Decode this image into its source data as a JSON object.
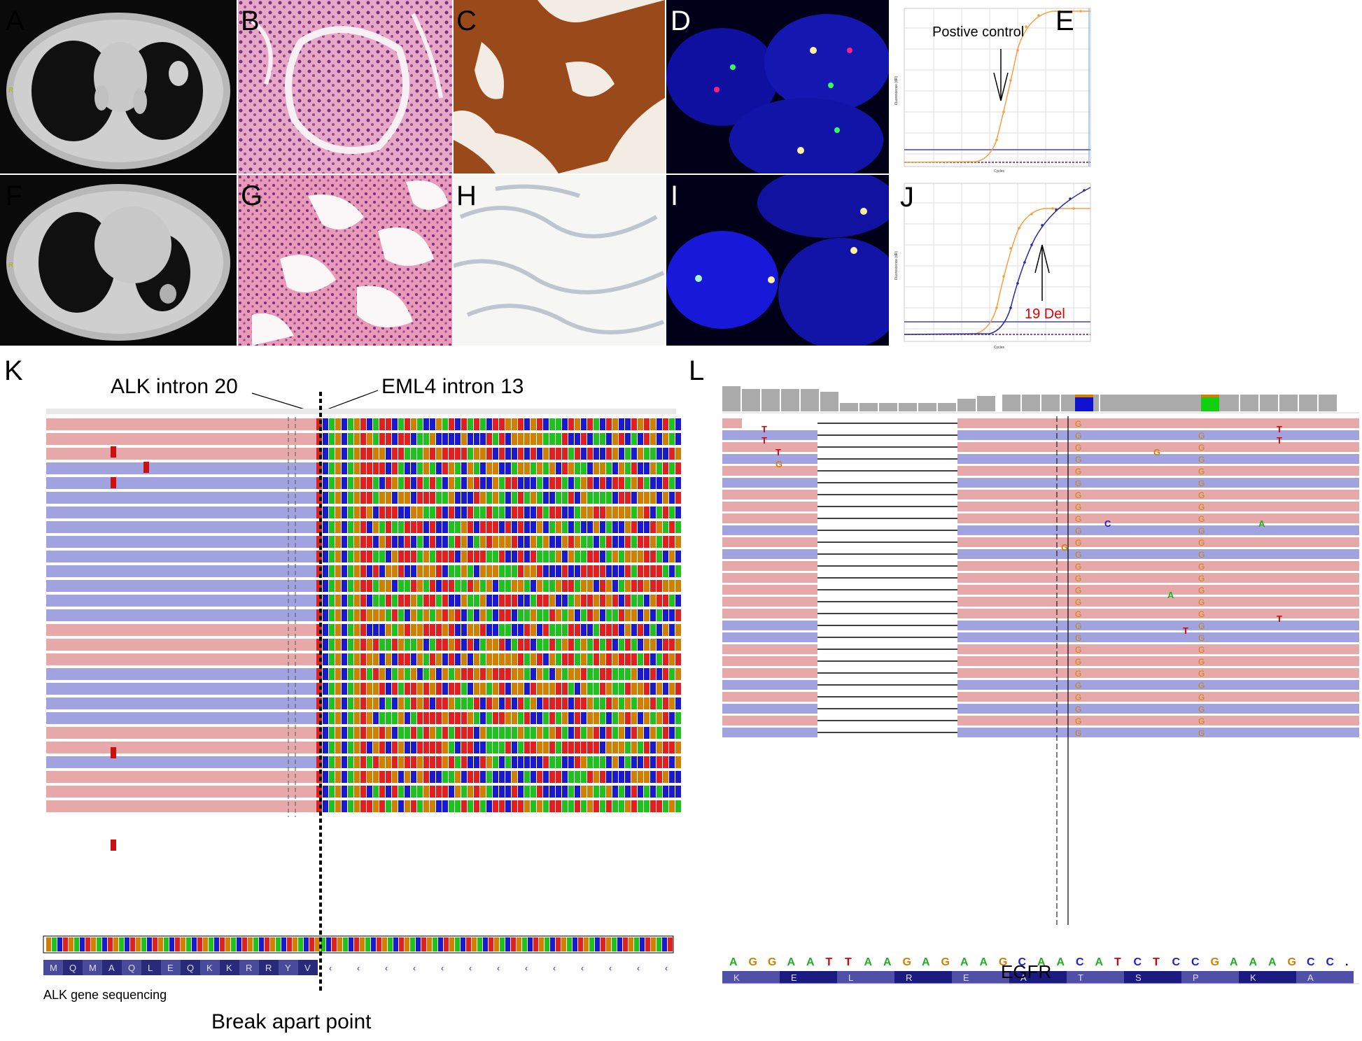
{
  "panels": {
    "A": "A",
    "B": "B",
    "C": "C",
    "D": "D",
    "E": "E",
    "F": "F",
    "G": "G",
    "H": "H",
    "I": "I",
    "J": "J",
    "K": "K",
    "L": "L"
  },
  "ct_marker": "R",
  "qpcr_top": {
    "annotation": "Postive control",
    "ylabel": "Fluorescence (dR)",
    "xlabel": "Cycles",
    "series_color": "#f5a03c"
  },
  "qpcr_bottom": {
    "annotation": "19 Del",
    "annotation_color": "#e00000",
    "ylabel": "Fluorescence (dR)",
    "xlabel": "Cycles",
    "series_colors": [
      "#f5a03c",
      "#2a2aa0"
    ]
  },
  "alk_panel": {
    "label_left": "ALK intron 20",
    "label_right": "EML4 intron 13",
    "caption": "ALK gene sequencing",
    "break_label": "Break apart point",
    "aa_sequence": [
      "M",
      "Q",
      "M",
      "A",
      "Q",
      "L",
      "E",
      "Q",
      "K",
      "K",
      "R",
      "R",
      "Y",
      "V"
    ]
  },
  "egfr_panel": {
    "gene_label": "EGFR",
    "nucleotides": [
      "A",
      "G",
      "G",
      "A",
      "A",
      "T",
      "T",
      "A",
      "A",
      "G",
      "A",
      "G",
      "A",
      "A",
      "G",
      "C",
      "A",
      "A",
      "C",
      "A",
      "T",
      "C",
      "T",
      "C",
      "C",
      "G",
      "A",
      "A",
      "A",
      "G",
      "C",
      "C",
      "."
    ],
    "amino_acids": [
      "K",
      "E",
      "L",
      "R",
      "E",
      "A",
      "T",
      "S",
      "P",
      "K",
      "A"
    ],
    "read_mismatches": [
      "T",
      "T",
      "T",
      "G",
      "G",
      "C",
      "A",
      "G",
      "A",
      "T",
      "T",
      "T",
      "T"
    ]
  },
  "colors": {
    "read_pink": "#e6a8a8",
    "read_blue": "#a0a3e0",
    "base_A": "#20b020",
    "base_C": "#2020d0",
    "base_G": "#d08000",
    "base_T": "#e00000"
  }
}
